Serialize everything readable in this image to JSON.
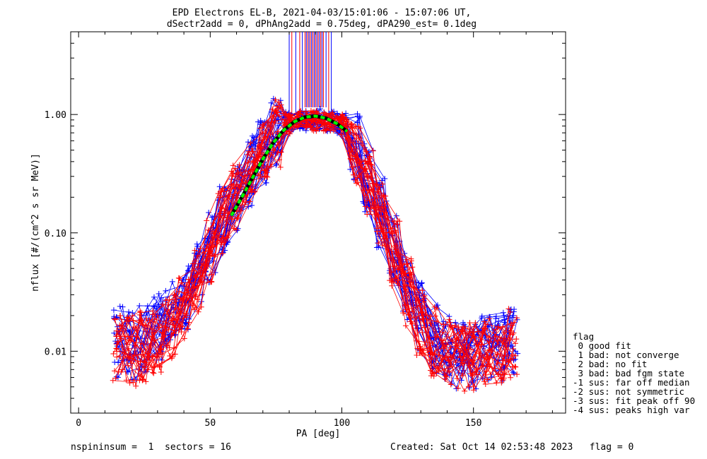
{
  "chart_data": {
    "type": "line",
    "title": "EPD Electrons EL-B, 2021-04-03/15:01:06 - 15:07:06 UT,",
    "subtitle": "dSectr2add = 0, dPhAng2add = 0.75deg, dPA290_est=   0.1deg",
    "xlabel": "PA [deg]",
    "ylabel": "nflux [#/(cm^2 s sr MeV)]",
    "xlim": [
      -3,
      185
    ],
    "ylim": [
      0.003,
      5.0
    ],
    "yscale": "log",
    "x_ticks": [
      "0",
      "50",
      "100",
      "150"
    ],
    "x_tick_values": [
      0,
      50,
      100,
      150
    ],
    "y_ticks": [
      "0.01",
      "0.10",
      "1.00"
    ],
    "y_tick_values": [
      0.01,
      0.1,
      1.0
    ],
    "grid": false,
    "series": [
      {
        "color": "#0000ff",
        "marker": "+",
        "x": [
          15,
          20,
          25,
          30,
          35,
          40,
          45,
          50,
          55,
          60,
          65,
          70,
          75,
          80,
          85,
          90,
          95,
          100,
          105,
          110,
          115,
          120,
          125,
          130,
          135,
          140,
          145,
          150,
          155,
          160,
          165
        ],
        "y": [
          0.012,
          0.011,
          0.013,
          0.016,
          0.02,
          0.028,
          0.045,
          0.075,
          0.13,
          0.2,
          0.33,
          0.52,
          0.72,
          0.86,
          0.9,
          0.91,
          0.88,
          0.84,
          0.55,
          0.3,
          0.15,
          0.07,
          0.035,
          0.02,
          0.013,
          0.01,
          0.009,
          0.009,
          0.01,
          0.011,
          0.012
        ]
      },
      {
        "color": "#ff0000",
        "marker": "+",
        "x": [
          15,
          20,
          25,
          30,
          35,
          40,
          45,
          50,
          55,
          60,
          65,
          70,
          75,
          80,
          85,
          90,
          95,
          100,
          105,
          110,
          115,
          120,
          125,
          130,
          135,
          140,
          145,
          150,
          155,
          160,
          165
        ],
        "y": [
          0.011,
          0.01,
          0.011,
          0.013,
          0.017,
          0.024,
          0.04,
          0.068,
          0.12,
          0.19,
          0.31,
          0.5,
          0.7,
          0.83,
          0.87,
          0.88,
          0.86,
          0.82,
          0.52,
          0.28,
          0.14,
          0.065,
          0.032,
          0.018,
          0.012,
          0.0095,
          0.0085,
          0.0088,
          0.0095,
          0.0105,
          0.0115
        ]
      },
      {
        "color": "#00ff00",
        "style": "dashed-fit",
        "x": [
          58,
          62,
          66,
          70,
          74,
          78,
          82,
          86,
          90,
          94,
          98,
          102
        ],
        "y": [
          0.14,
          0.2,
          0.29,
          0.42,
          0.58,
          0.74,
          0.87,
          0.95,
          0.97,
          0.93,
          0.84,
          0.72
        ]
      }
    ]
  },
  "legend": {
    "title": "flag",
    "items": [
      " 0 good fit",
      " 1 bad: not converge",
      " 2 bad: no fit",
      " 3 bad: bad fgm state",
      "-1 sus: far off median",
      "-2 sus: not symmetric",
      "-3 sus: fit peak off 90",
      "-4 sus: peaks high var"
    ]
  },
  "footer": {
    "left": "nspininsum =  1  sectors = 16",
    "right": "Created: Sat Oct 14 02:53:48 2023   flag = 0"
  }
}
